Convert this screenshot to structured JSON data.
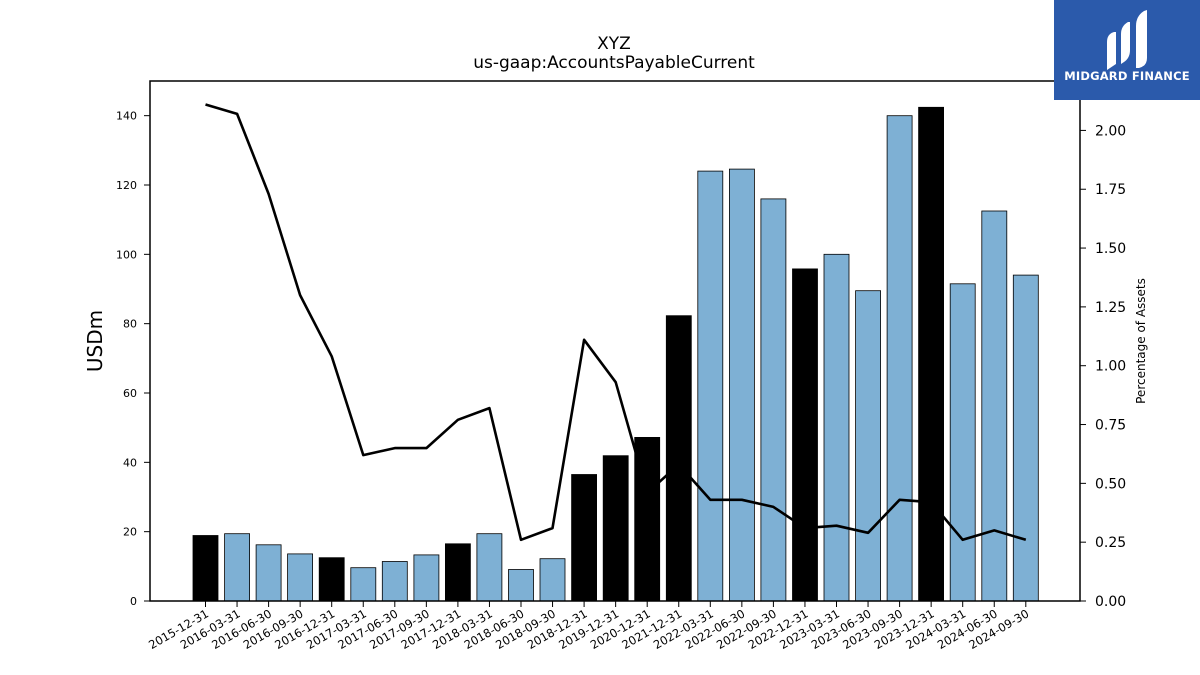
{
  "brand": {
    "name": "MIDGARD FINANCE",
    "logo_color": "#2b5aab"
  },
  "chart_data": {
    "type": "bar",
    "title": "XYZ",
    "subtitle": "us-gaap:AccountsPayableCurrent",
    "ylabel": "USDm",
    "y2label": "Percentage of Assets",
    "ylim": [
      0,
      150
    ],
    "y2lim": [
      0,
      2.21
    ],
    "yticks": [
      0,
      20,
      40,
      60,
      80,
      100,
      120,
      140
    ],
    "y2ticks": [
      "0.00",
      "0.25",
      "0.50",
      "0.75",
      "1.00",
      "1.25",
      "1.50",
      "1.75",
      "2.00"
    ],
    "categories": [
      "2015-12-31",
      "2016-03-31",
      "2016-06-30",
      "2016-09-30",
      "2016-12-31",
      "2017-03-31",
      "2017-06-30",
      "2017-09-30",
      "2017-12-31",
      "2018-03-31",
      "2018-06-30",
      "2018-09-30",
      "2018-12-31",
      "2019-12-31",
      "2020-12-31",
      "2021-12-31",
      "2022-03-31",
      "2022-06-30",
      "2022-09-30",
      "2022-12-31",
      "2023-03-31",
      "2023-06-30",
      "2023-09-30",
      "2023-12-31",
      "2024-03-31",
      "2024-06-30",
      "2024-09-30"
    ],
    "series": [
      {
        "kind": "bar",
        "values": [
          18.9,
          19.4,
          16.2,
          13.6,
          12.5,
          9.6,
          11.4,
          13.3,
          16.5,
          19.4,
          9.1,
          12.2,
          36.5,
          41.9,
          47.2,
          82.3,
          124.0,
          124.6,
          116.0,
          95.8,
          100.0,
          89.5,
          140.0,
          142.4,
          91.5,
          112.5,
          94.0
        ],
        "annual": [
          true,
          false,
          false,
          false,
          true,
          false,
          false,
          false,
          true,
          false,
          false,
          false,
          true,
          true,
          true,
          true,
          false,
          false,
          false,
          true,
          false,
          false,
          false,
          true,
          false,
          false,
          false
        ]
      },
      {
        "kind": "line",
        "axis": "right",
        "values": [
          2.11,
          2.07,
          1.73,
          1.3,
          1.04,
          0.62,
          0.65,
          0.65,
          0.77,
          0.82,
          0.26,
          0.31,
          1.11,
          0.93,
          0.46,
          0.58,
          0.43,
          0.43,
          0.4,
          0.31,
          0.32,
          0.29,
          0.43,
          0.42,
          0.26,
          0.3,
          0.26
        ]
      }
    ],
    "colors": {
      "annual": "#000000",
      "quarterly": "#7eb0d4",
      "line": "#000000"
    },
    "grid": false,
    "legend": "none"
  }
}
